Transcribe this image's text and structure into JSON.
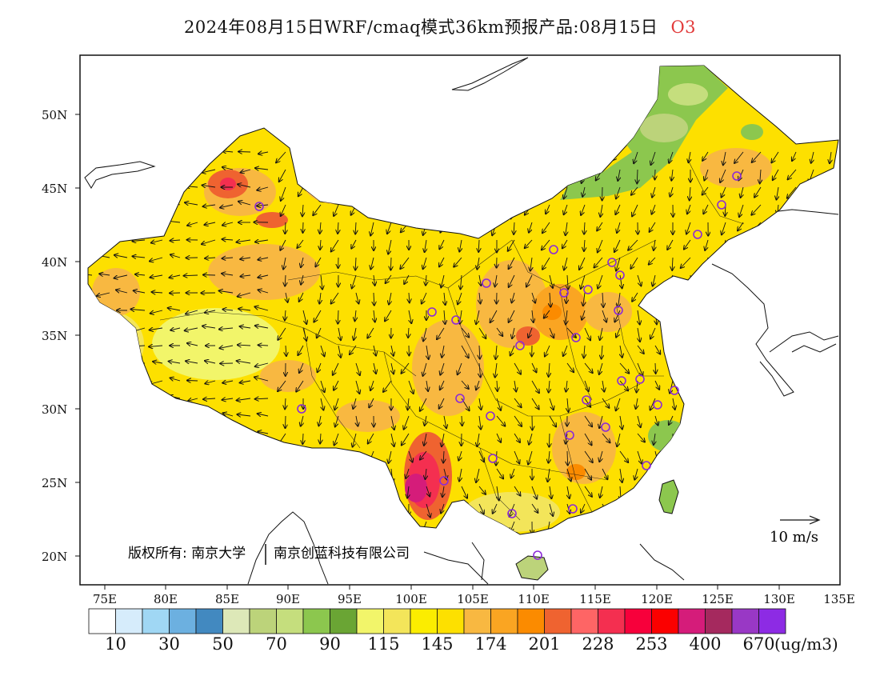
{
  "title": {
    "main": "2024年08月15日WRF/cmaq模式36km预报产品:08月15日",
    "species": "O3"
  },
  "map": {
    "latitude_labels": [
      "50N",
      "45N",
      "40N",
      "35N",
      "30N",
      "25N",
      "20N"
    ],
    "longitude_labels": [
      "75E",
      "80E",
      "85E",
      "90E",
      "95E",
      "100E",
      "105E",
      "110E",
      "115E",
      "120E",
      "125E",
      "130E",
      "135E"
    ],
    "copyright": "版权所有: 南京大学",
    "copyright_company": "南京创蓝科技有限公司",
    "wind_reference": "10 m/s",
    "station_color": "#8b2ad8"
  },
  "colorbar": {
    "labels": [
      "10",
      "30",
      "50",
      "70",
      "90",
      "115",
      "145",
      "174",
      "201",
      "228",
      "253",
      "400",
      "670"
    ],
    "unit": "(ug/m3)",
    "colors": [
      "#ffffff",
      "#d6ecfb",
      "#a0d7f4",
      "#6cb0e0",
      "#4289c0",
      "#dde8b8",
      "#bcd37a",
      "#c5de7d",
      "#8cc74e",
      "#6aa534",
      "#f2f56a",
      "#f3e55a",
      "#fbed00",
      "#fde000",
      "#f8b841",
      "#faa522",
      "#fb8b00",
      "#ef6330",
      "#fe6565",
      "#f42f50",
      "#f7003b",
      "#fb0000",
      "#d51c7a",
      "#a5295e",
      "#9938c5",
      "#8d2be4"
    ]
  }
}
